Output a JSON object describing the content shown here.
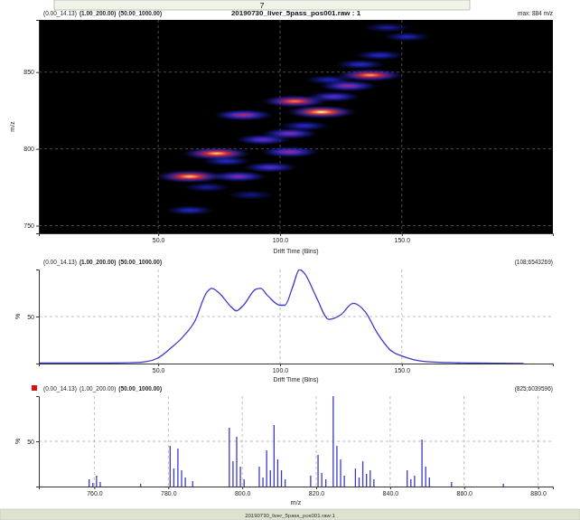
{
  "page": {
    "number": "7",
    "footer": "20190730_liver_5pass_pos001.raw:1"
  },
  "chart_data": [
    {
      "type": "heatmap",
      "title": "20190730_liver_5pass_pos001.raw : 1",
      "annotations": [
        "(0.00_14.13)",
        "(1.00_200.00)",
        "(50.00_1000.00)",
        "max: 884 m/z"
      ],
      "xlabel": "Drift Time (Bins)",
      "ylabel": "m/z",
      "xlim": [
        1,
        212
      ],
      "ylim": [
        745,
        884
      ],
      "xticks": [
        {
          "value": 50,
          "label": "50.0"
        },
        {
          "value": 100,
          "label": "100.0"
        },
        {
          "value": 150,
          "label": "150.0"
        }
      ],
      "yticks": [
        750,
        800,
        850
      ],
      "grid": true,
      "cells": {
        "x": [
          63,
          70,
          63,
          83,
          78,
          96,
          74,
          104,
          93,
          104,
          85,
          117,
          106,
          122,
          128,
          137,
          133,
          141,
          152,
          144,
          88,
          110,
          120
        ],
        "y": [
          760,
          775,
          782,
          782,
          792,
          788,
          797,
          798,
          806,
          810,
          822,
          824,
          831,
          834,
          841,
          848,
          855,
          861,
          873,
          879,
          770,
          815,
          845
        ],
        "z": [
          28,
          20,
          95,
          55,
          30,
          45,
          95,
          60,
          50,
          55,
          65,
          100,
          85,
          45,
          60,
          90,
          30,
          30,
          25,
          20,
          15,
          30,
          25
        ]
      }
    },
    {
      "type": "line",
      "annotations": [
        "(0.00_14.13)",
        "(1.00_200.00)",
        "(50.00_1000.00)",
        "(108;6543269)"
      ],
      "xlabel": "Drift Time (Bins)",
      "ylabel": "%",
      "xlim": [
        1,
        212
      ],
      "ylim": [
        0,
        100
      ],
      "xticks": [
        {
          "value": 50,
          "label": "50.0"
        },
        {
          "value": 100,
          "label": "100.0"
        },
        {
          "value": 150,
          "label": "150.0"
        }
      ],
      "yticks": [
        50
      ],
      "grid": true,
      "color": "#3a3ac8",
      "x": [
        1,
        10,
        20,
        30,
        40,
        45,
        50,
        55,
        60,
        65,
        70,
        72,
        75,
        80,
        82,
        85,
        90,
        92,
        95,
        100,
        102,
        105,
        108,
        110,
        115,
        120,
        125,
        130,
        135,
        140,
        145,
        150,
        155,
        160,
        170,
        180,
        190,
        200
      ],
      "values": [
        0.5,
        0.5,
        0.5,
        0.6,
        1,
        2,
        6,
        16,
        28,
        45,
        76,
        80,
        75,
        60,
        56,
        62,
        79,
        80,
        72,
        62,
        62,
        80,
        100,
        96,
        70,
        47,
        52,
        64,
        55,
        32,
        15,
        8,
        4,
        2,
        1,
        0.5,
        0.3,
        0.2
      ]
    },
    {
      "type": "stem",
      "annotations": [
        "(0.00_14.13)",
        "(1.00_200.00)",
        "(50.00_1000.00)",
        "(825;6039596)"
      ],
      "xlabel": "m/z",
      "ylabel": "%",
      "xlim": [
        745,
        884
      ],
      "ylim": [
        0,
        100
      ],
      "xticks": [
        {
          "value": 760,
          "label": "760.0"
        },
        {
          "value": 780,
          "label": "780.0"
        },
        {
          "value": 800,
          "label": "800.0"
        },
        {
          "value": 820,
          "label": "820.0"
        },
        {
          "value": 840,
          "label": "840.0"
        },
        {
          "value": 860,
          "label": "860.0"
        },
        {
          "value": 880,
          "label": "880.0"
        }
      ],
      "yticks": [
        50
      ],
      "grid": true,
      "color": "#3a3ac8",
      "x": [
        758.6,
        759.6,
        760.6,
        761.6,
        772.5,
        780.5,
        781.5,
        782.6,
        783.6,
        784.6,
        786.6,
        796.5,
        797.5,
        798.5,
        799.5,
        800.5,
        804.6,
        805.6,
        806.6,
        807.6,
        808.6,
        809.6,
        810.6,
        811.6,
        818.5,
        820.5,
        821.5,
        822.6,
        824.6,
        825.6,
        826.6,
        827.6,
        830.6,
        831.6,
        832.6,
        833.6,
        834.6,
        835.6,
        844.6,
        845.6,
        846.6,
        848.6,
        849.6,
        850.6,
        856.6,
        870.6
      ],
      "values": [
        8,
        4,
        12,
        5,
        3,
        45,
        20,
        42,
        18,
        10,
        6,
        65,
        28,
        55,
        22,
        8,
        22,
        10,
        40,
        18,
        68,
        30,
        18,
        8,
        12,
        35,
        15,
        8,
        100,
        45,
        30,
        12,
        20,
        10,
        28,
        14,
        18,
        8,
        18,
        8,
        12,
        52,
        22,
        10,
        5,
        3
      ]
    }
  ]
}
